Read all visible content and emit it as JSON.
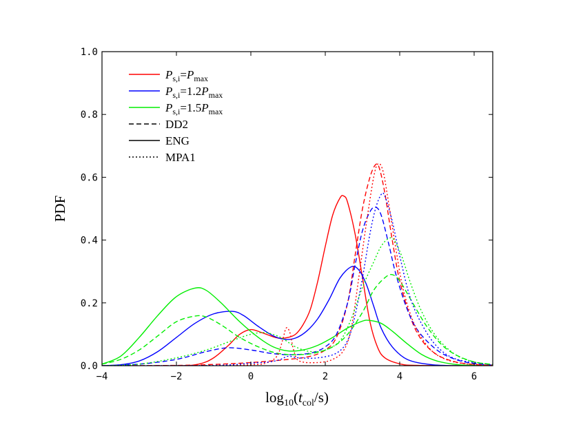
{
  "chart_data": {
    "type": "line",
    "xlabel": "log10(t_col/s)",
    "ylabel": "PDF",
    "xlim": [
      -4,
      6.5
    ],
    "ylim": [
      0,
      1.0
    ],
    "xticks": [
      -4,
      -2,
      0,
      2,
      4,
      6
    ],
    "xtick_labels": [
      "−4",
      "−2",
      "0",
      "2",
      "4",
      "6"
    ],
    "yticks": [
      0,
      0.2,
      0.4,
      0.6,
      0.8,
      1.0
    ],
    "ytick_labels": [
      "0.0",
      "0.2",
      "0.4",
      "0.6",
      "0.8",
      "1.0"
    ],
    "grid": false,
    "legend_position": "top-left",
    "legend": [
      {
        "kind": "color",
        "color": "#ff0000",
        "main": "P",
        "sub": "s,i",
        "mid": "=",
        "main2": "P",
        "sub2": "max"
      },
      {
        "kind": "color",
        "color": "#0000ff",
        "main": "P",
        "sub": "s,i",
        "mid": "=1.2",
        "main2": "P",
        "sub2": "max"
      },
      {
        "kind": "color",
        "color": "#00ee00",
        "main": "P",
        "sub": "s,i",
        "mid": "=1.5",
        "main2": "P",
        "sub2": "max"
      },
      {
        "kind": "style",
        "dash": "dashed",
        "label": "DD2"
      },
      {
        "kind": "style",
        "dash": "solid",
        "label": "ENG"
      },
      {
        "kind": "style",
        "dash": "dotted",
        "label": "MPA1"
      }
    ],
    "series": [
      {
        "color": "#ff0000",
        "dash": "solid",
        "points": [
          [
            -4,
            0.0
          ],
          [
            -2,
            0.0
          ],
          [
            -1.4,
            0.005
          ],
          [
            -1,
            0.025
          ],
          [
            -0.6,
            0.065
          ],
          [
            -0.3,
            0.1
          ],
          [
            0,
            0.115
          ],
          [
            0.3,
            0.105
          ],
          [
            0.6,
            0.092
          ],
          [
            0.8,
            0.087
          ],
          [
            1.0,
            0.09
          ],
          [
            1.2,
            0.1
          ],
          [
            1.4,
            0.13
          ],
          [
            1.6,
            0.18
          ],
          [
            1.8,
            0.27
          ],
          [
            2.0,
            0.38
          ],
          [
            2.2,
            0.48
          ],
          [
            2.4,
            0.535
          ],
          [
            2.5,
            0.54
          ],
          [
            2.6,
            0.52
          ],
          [
            2.8,
            0.42
          ],
          [
            3.0,
            0.28
          ],
          [
            3.2,
            0.14
          ],
          [
            3.4,
            0.06
          ],
          [
            3.6,
            0.025
          ],
          [
            4.0,
            0.006
          ],
          [
            4.5,
            0.001
          ],
          [
            6.5,
            0.0
          ]
        ]
      },
      {
        "color": "#0000ff",
        "dash": "solid",
        "points": [
          [
            -4,
            0.0
          ],
          [
            -3.5,
            0.003
          ],
          [
            -3,
            0.015
          ],
          [
            -2.5,
            0.045
          ],
          [
            -2,
            0.09
          ],
          [
            -1.5,
            0.135
          ],
          [
            -1,
            0.165
          ],
          [
            -0.5,
            0.173
          ],
          [
            -0.2,
            0.16
          ],
          [
            0.2,
            0.125
          ],
          [
            0.6,
            0.095
          ],
          [
            0.9,
            0.084
          ],
          [
            1.2,
            0.088
          ],
          [
            1.5,
            0.11
          ],
          [
            1.8,
            0.15
          ],
          [
            2.1,
            0.21
          ],
          [
            2.4,
            0.28
          ],
          [
            2.7,
            0.315
          ],
          [
            2.9,
            0.305
          ],
          [
            3.1,
            0.26
          ],
          [
            3.3,
            0.19
          ],
          [
            3.5,
            0.12
          ],
          [
            3.8,
            0.06
          ],
          [
            4.2,
            0.02
          ],
          [
            4.8,
            0.004
          ],
          [
            5.5,
            0.0
          ],
          [
            6.5,
            0.0
          ]
        ]
      },
      {
        "color": "#00ee00",
        "dash": "solid",
        "points": [
          [
            -4,
            0.005
          ],
          [
            -3.5,
            0.03
          ],
          [
            -3,
            0.09
          ],
          [
            -2.5,
            0.16
          ],
          [
            -2,
            0.22
          ],
          [
            -1.5,
            0.247
          ],
          [
            -1.2,
            0.24
          ],
          [
            -0.8,
            0.2
          ],
          [
            -0.3,
            0.14
          ],
          [
            0.2,
            0.09
          ],
          [
            0.6,
            0.06
          ],
          [
            1.0,
            0.047
          ],
          [
            1.4,
            0.05
          ],
          [
            1.8,
            0.065
          ],
          [
            2.2,
            0.09
          ],
          [
            2.6,
            0.12
          ],
          [
            3.0,
            0.142
          ],
          [
            3.2,
            0.144
          ],
          [
            3.5,
            0.135
          ],
          [
            3.8,
            0.11
          ],
          [
            4.2,
            0.07
          ],
          [
            4.6,
            0.035
          ],
          [
            5.0,
            0.015
          ],
          [
            5.5,
            0.004
          ],
          [
            6.0,
            0.001
          ],
          [
            6.5,
            0.0
          ]
        ]
      },
      {
        "color": "#ff0000",
        "dash": "dashed",
        "points": [
          [
            -4,
            0.0
          ],
          [
            -2,
            0.001
          ],
          [
            -1,
            0.004
          ],
          [
            0,
            0.01
          ],
          [
            1,
            0.02
          ],
          [
            1.6,
            0.03
          ],
          [
            2.0,
            0.05
          ],
          [
            2.3,
            0.09
          ],
          [
            2.6,
            0.2
          ],
          [
            2.8,
            0.35
          ],
          [
            3.0,
            0.5
          ],
          [
            3.2,
            0.6
          ],
          [
            3.35,
            0.64
          ],
          [
            3.45,
            0.63
          ],
          [
            3.6,
            0.55
          ],
          [
            3.8,
            0.4
          ],
          [
            4.0,
            0.27
          ],
          [
            4.3,
            0.15
          ],
          [
            4.6,
            0.08
          ],
          [
            5.0,
            0.035
          ],
          [
            5.5,
            0.012
          ],
          [
            6.0,
            0.004
          ],
          [
            6.5,
            0.001
          ]
        ]
      },
      {
        "color": "#0000ff",
        "dash": "dashed",
        "points": [
          [
            -4,
            0.0
          ],
          [
            -3,
            0.005
          ],
          [
            -2,
            0.02
          ],
          [
            -1.2,
            0.045
          ],
          [
            -0.6,
            0.057
          ],
          [
            0,
            0.05
          ],
          [
            0.5,
            0.04
          ],
          [
            1,
            0.035
          ],
          [
            1.6,
            0.04
          ],
          [
            2.0,
            0.06
          ],
          [
            2.3,
            0.1
          ],
          [
            2.6,
            0.2
          ],
          [
            2.8,
            0.32
          ],
          [
            3.0,
            0.43
          ],
          [
            3.2,
            0.49
          ],
          [
            3.35,
            0.505
          ],
          [
            3.5,
            0.48
          ],
          [
            3.7,
            0.39
          ],
          [
            3.9,
            0.29
          ],
          [
            4.2,
            0.18
          ],
          [
            4.5,
            0.11
          ],
          [
            5.0,
            0.05
          ],
          [
            5.5,
            0.02
          ],
          [
            6.0,
            0.007
          ],
          [
            6.5,
            0.002
          ]
        ]
      },
      {
        "color": "#00ee00",
        "dash": "dashed",
        "points": [
          [
            -4,
            0.005
          ],
          [
            -3.5,
            0.02
          ],
          [
            -3,
            0.05
          ],
          [
            -2.5,
            0.095
          ],
          [
            -2,
            0.14
          ],
          [
            -1.5,
            0.158
          ],
          [
            -1.2,
            0.155
          ],
          [
            -0.8,
            0.13
          ],
          [
            -0.3,
            0.09
          ],
          [
            0.2,
            0.06
          ],
          [
            0.7,
            0.04
          ],
          [
            1.2,
            0.035
          ],
          [
            1.7,
            0.04
          ],
          [
            2.2,
            0.06
          ],
          [
            2.6,
            0.1
          ],
          [
            3.0,
            0.17
          ],
          [
            3.3,
            0.24
          ],
          [
            3.6,
            0.28
          ],
          [
            3.8,
            0.29
          ],
          [
            4.0,
            0.27
          ],
          [
            4.3,
            0.21
          ],
          [
            4.7,
            0.13
          ],
          [
            5.1,
            0.07
          ],
          [
            5.5,
            0.035
          ],
          [
            6.0,
            0.012
          ],
          [
            6.5,
            0.004
          ]
        ]
      },
      {
        "color": "#ff0000",
        "dash": "dotted",
        "points": [
          [
            -4,
            0.0
          ],
          [
            -1,
            0.0
          ],
          [
            0,
            0.003
          ],
          [
            0.4,
            0.008
          ],
          [
            0.7,
            0.03
          ],
          [
            0.85,
            0.08
          ],
          [
            0.95,
            0.12
          ],
          [
            1.05,
            0.105
          ],
          [
            1.15,
            0.05
          ],
          [
            1.3,
            0.015
          ],
          [
            1.8,
            0.01
          ],
          [
            2.2,
            0.02
          ],
          [
            2.5,
            0.05
          ],
          [
            2.7,
            0.12
          ],
          [
            2.9,
            0.28
          ],
          [
            3.1,
            0.45
          ],
          [
            3.3,
            0.6
          ],
          [
            3.42,
            0.643
          ],
          [
            3.55,
            0.62
          ],
          [
            3.7,
            0.52
          ],
          [
            3.9,
            0.37
          ],
          [
            4.1,
            0.24
          ],
          [
            4.4,
            0.13
          ],
          [
            4.8,
            0.055
          ],
          [
            5.2,
            0.022
          ],
          [
            5.7,
            0.007
          ],
          [
            6.5,
            0.001
          ]
        ]
      },
      {
        "color": "#0000ff",
        "dash": "dotted",
        "points": [
          [
            -4,
            0.0
          ],
          [
            -1,
            0.001
          ],
          [
            0,
            0.008
          ],
          [
            0.5,
            0.012
          ],
          [
            0.8,
            0.02
          ],
          [
            1.0,
            0.03
          ],
          [
            1.3,
            0.025
          ],
          [
            1.8,
            0.025
          ],
          [
            2.3,
            0.04
          ],
          [
            2.6,
            0.08
          ],
          [
            2.8,
            0.16
          ],
          [
            3.0,
            0.28
          ],
          [
            3.2,
            0.42
          ],
          [
            3.35,
            0.5
          ],
          [
            3.5,
            0.545
          ],
          [
            3.6,
            0.54
          ],
          [
            3.8,
            0.46
          ],
          [
            4.0,
            0.35
          ],
          [
            4.3,
            0.21
          ],
          [
            4.7,
            0.11
          ],
          [
            5.1,
            0.05
          ],
          [
            5.6,
            0.018
          ],
          [
            6.5,
            0.003
          ]
        ]
      },
      {
        "color": "#00ee00",
        "dash": "dotted",
        "points": [
          [
            -4,
            0.0
          ],
          [
            -3,
            0.005
          ],
          [
            -2,
            0.025
          ],
          [
            -1.2,
            0.05
          ],
          [
            -0.5,
            0.08
          ],
          [
            0,
            0.1
          ],
          [
            0.4,
            0.105
          ],
          [
            0.8,
            0.09
          ],
          [
            1.2,
            0.06
          ],
          [
            1.6,
            0.045
          ],
          [
            2.0,
            0.05
          ],
          [
            2.4,
            0.08
          ],
          [
            2.7,
            0.15
          ],
          [
            3.0,
            0.25
          ],
          [
            3.3,
            0.33
          ],
          [
            3.5,
            0.38
          ],
          [
            3.7,
            0.405
          ],
          [
            3.85,
            0.4
          ],
          [
            4.05,
            0.35
          ],
          [
            4.3,
            0.26
          ],
          [
            4.6,
            0.17
          ],
          [
            5.0,
            0.09
          ],
          [
            5.5,
            0.035
          ],
          [
            6.0,
            0.012
          ],
          [
            6.5,
            0.004
          ]
        ]
      }
    ]
  }
}
